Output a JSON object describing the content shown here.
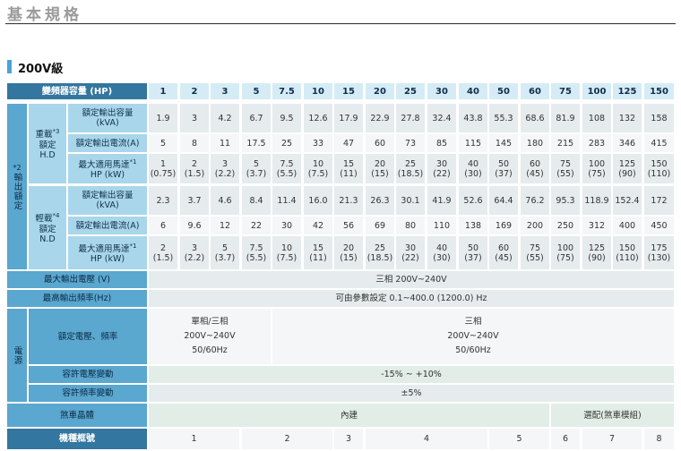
{
  "page_title": "基本規格",
  "section_title": "200V級",
  "header_label": "變頻器容量 (HP)",
  "capacities": [
    "1",
    "2",
    "3",
    "5",
    "7.5",
    "10",
    "15",
    "20",
    "25",
    "30",
    "40",
    "50",
    "60",
    "75",
    "100",
    "125",
    "150"
  ],
  "group_output": "輸出額定",
  "group_output_note": "*2",
  "heavy_duty": {
    "label_l1": "重載",
    "note": "*3",
    "label_l2": "額定",
    "label_l3": "H.D"
  },
  "light_duty": {
    "label_l1": "輕載",
    "note": "*4",
    "label_l2": "額定",
    "label_l3": "N.D"
  },
  "row_rated_capacity": {
    "l1": "額定輸出容量",
    "l2": "(kVA)"
  },
  "row_rated_current": "額定輸出電流(A)",
  "row_max_motor": {
    "l1": "最大適用馬達",
    "note": "*1",
    "l2": "HP (kW)"
  },
  "hd_kva": [
    "1.9",
    "3",
    "4.2",
    "6.7",
    "9.5",
    "12.6",
    "17.9",
    "22.9",
    "27.8",
    "32.4",
    "43.8",
    "55.3",
    "68.6",
    "81.9",
    "108",
    "132",
    "158"
  ],
  "hd_current": [
    "5",
    "8",
    "11",
    "17.5",
    "25",
    "33",
    "47",
    "60",
    "73",
    "85",
    "115",
    "145",
    "180",
    "215",
    "283",
    "346",
    "415"
  ],
  "hd_motor_hp": [
    "1",
    "2",
    "3",
    "5",
    "7.5",
    "10",
    "15",
    "20",
    "25",
    "30",
    "40",
    "50",
    "60",
    "75",
    "100",
    "125",
    "150"
  ],
  "hd_motor_kw": [
    "(0.75)",
    "(1.5)",
    "(2.2)",
    "(3.7)",
    "(5.5)",
    "(7.5)",
    "(11)",
    "(15)",
    "(18.5)",
    "(22)",
    "(30)",
    "(37)",
    "(45)",
    "(55)",
    "(75)",
    "(90)",
    "(110)"
  ],
  "nd_kva": [
    "2.3",
    "3.7",
    "4.6",
    "8.4",
    "11.4",
    "16.0",
    "21.3",
    "26.3",
    "30.1",
    "41.9",
    "52.6",
    "64.4",
    "76.2",
    "95.3",
    "118.9",
    "152.4",
    "172"
  ],
  "nd_current": [
    "6",
    "9.6",
    "12",
    "22",
    "30",
    "42",
    "56",
    "69",
    "80",
    "110",
    "138",
    "169",
    "200",
    "250",
    "312",
    "400",
    "450"
  ],
  "nd_motor_hp": [
    "2",
    "3",
    "5",
    "7.5",
    "10",
    "15",
    "20",
    "25",
    "30",
    "40",
    "50",
    "60",
    "75",
    "100",
    "125",
    "150",
    "175"
  ],
  "nd_motor_kw": [
    "(1.5)",
    "(2.2)",
    "(3.7)",
    "(5.5)",
    "(7.5)",
    "(11)",
    "(15)",
    "(18.5)",
    "(22)",
    "(30)",
    "(37)",
    "(45)",
    "(55)",
    "(75)",
    "(90)",
    "(110)",
    "(130)"
  ],
  "max_voltage": {
    "label": "最大輸出電壓 (V)",
    "value": "三相 200V~240V"
  },
  "max_freq": {
    "label": "最高輸出頻率(Hz)",
    "value": "可由參數設定 0.1~400.0 (1200.0) Hz"
  },
  "group_power": "電源",
  "rated_voltage_label": "額定電壓、頻率",
  "rated_voltage_a": {
    "l1": "單相/三相",
    "l2": "200V~240V",
    "l3": "50/60Hz"
  },
  "rated_voltage_b": {
    "l1": "三相",
    "l2": "200V~240V",
    "l3": "50/60Hz"
  },
  "voltage_tolerance": {
    "label": "容許電壓變動",
    "value": "-15% ~ +10%"
  },
  "freq_tolerance": {
    "label": "容許頻率變動",
    "value": "±5%"
  },
  "brake": {
    "label": "煞車晶體",
    "builtin": "內建",
    "optional": "選配(煞車模組)"
  },
  "frame": {
    "label": "機種框號",
    "values": [
      "1",
      "2",
      "3",
      "4",
      "5",
      "6",
      "7",
      "8"
    ]
  }
}
